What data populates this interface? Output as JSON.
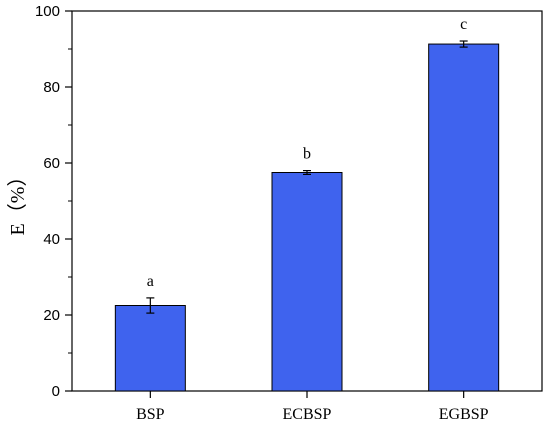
{
  "chart_data": {
    "type": "bar",
    "title": "",
    "xlabel": "",
    "ylabel": "E（%）",
    "ylim": [
      0,
      100
    ],
    "yticks": [
      0,
      20,
      40,
      60,
      80,
      100
    ],
    "categories": [
      "BSP",
      "ECBSP",
      "EGBSP"
    ],
    "values": [
      22.5,
      57.5,
      91.3
    ],
    "errors": [
      2.0,
      0.5,
      0.8
    ],
    "significance": [
      "a",
      "b",
      "c"
    ],
    "bar_color": "#3f63ee",
    "grid": false,
    "legend": "none"
  }
}
